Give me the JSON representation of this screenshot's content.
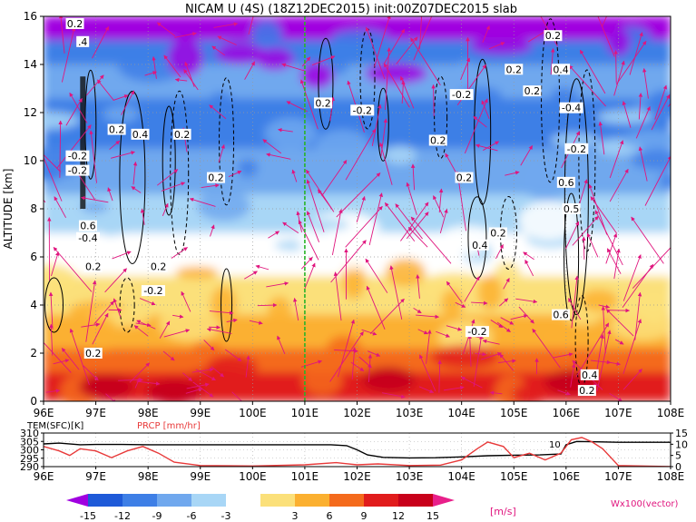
{
  "title": "NICAM U (4S) (18Z12DEC2015) init:00Z07DEC2015 slab",
  "chart_data": [
    {
      "type": "heatmap",
      "title": "NICAM U (4S) (18Z12DEC2015) init:00Z07DEC2015 slab",
      "xlabel": "",
      "ylabel": "ALTITUDE [km]",
      "xlim": [
        96,
        108
      ],
      "ylim": [
        0,
        16
      ],
      "x_ticks": [
        "96E",
        "97E",
        "98E",
        "99E",
        "100E",
        "101E",
        "102E",
        "103E",
        "104E",
        "105E",
        "106E",
        "107E",
        "108E"
      ],
      "y_ticks": [
        "0",
        "2",
        "4",
        "6",
        "8",
        "10",
        "12",
        "14",
        "16"
      ],
      "grid": true,
      "marker_line_x": 101,
      "contour_labels": [
        {
          "text": "0.2",
          "x": 96.6,
          "y": 15.7
        },
        {
          "text": ".4",
          "x": 96.75,
          "y": 14.95
        },
        {
          "text": "0.2",
          "x": 97.4,
          "y": 11.3
        },
        {
          "text": "0.4",
          "x": 97.85,
          "y": 11.1
        },
        {
          "text": "0.2",
          "x": 98.65,
          "y": 11.1
        },
        {
          "text": "-0.2",
          "x": 96.65,
          "y": 10.2
        },
        {
          "text": "-0.2",
          "x": 96.65,
          "y": 9.6
        },
        {
          "text": "0.6",
          "x": 96.85,
          "y": 7.3
        },
        {
          "text": "-0.4",
          "x": 96.85,
          "y": 6.8
        },
        {
          "text": "0.2",
          "x": 96.95,
          "y": 5.6
        },
        {
          "text": "0.2",
          "x": 98.2,
          "y": 5.6
        },
        {
          "text": "-0.2",
          "x": 98.1,
          "y": 4.6
        },
        {
          "text": "0.2",
          "x": 96.95,
          "y": 2.0
        },
        {
          "text": "0.2",
          "x": 99.3,
          "y": 9.3
        },
        {
          "text": "0.2",
          "x": 101.35,
          "y": 12.4
        },
        {
          "text": "-0.2",
          "x": 102.1,
          "y": 12.1
        },
        {
          "text": "0.2",
          "x": 103.55,
          "y": 10.85
        },
        {
          "text": "-0.2",
          "x": 104.0,
          "y": 12.75
        },
        {
          "text": "0.2",
          "x": 104.05,
          "y": 9.3
        },
        {
          "text": "0.2",
          "x": 105.0,
          "y": 13.8
        },
        {
          "text": "0.2",
          "x": 105.35,
          "y": 12.9
        },
        {
          "text": "0.2",
          "x": 105.75,
          "y": 15.2
        },
        {
          "text": "0.4",
          "x": 105.9,
          "y": 13.8
        },
        {
          "text": "-0.4",
          "x": 106.1,
          "y": 12.2
        },
        {
          "text": "-0.2",
          "x": 106.2,
          "y": 10.5
        },
        {
          "text": "0.6",
          "x": 106.0,
          "y": 9.1
        },
        {
          "text": "0.5",
          "x": 106.1,
          "y": 8.0
        },
        {
          "text": "0.4",
          "x": 104.35,
          "y": 6.5
        },
        {
          "text": "0.2",
          "x": 104.7,
          "y": 7.0
        },
        {
          "text": "-0.2",
          "x": 104.3,
          "y": 2.9
        },
        {
          "text": "0.6",
          "x": 105.9,
          "y": 3.6
        },
        {
          "text": "0.4",
          "x": 106.45,
          "y": 1.1
        },
        {
          "text": "0.2",
          "x": 106.4,
          "y": 0.45
        }
      ]
    },
    {
      "type": "line",
      "xlim": [
        96,
        108
      ],
      "x_ticks": [
        "96E",
        "97E",
        "98E",
        "99E",
        "100E",
        "101E",
        "102E",
        "103E",
        "104E",
        "105E",
        "106E",
        "107E",
        "108E"
      ],
      "left_axis": {
        "label": "TEM(SFC)[K]",
        "ticks": [
          "290",
          "295",
          "300",
          "305",
          "310"
        ],
        "range": [
          290,
          310
        ]
      },
      "right_axis": {
        "label": "PRCP [mm/hr]",
        "ticks": [
          "0",
          "5",
          "10",
          "15"
        ],
        "range": [
          0,
          15
        ]
      },
      "annotations": [
        "10"
      ],
      "series": [
        {
          "name": "TEM(SFC)[K]",
          "color": "#000000",
          "x": [
            96.0,
            96.3,
            96.7,
            97.0,
            97.5,
            98.0,
            98.5,
            99.0,
            99.5,
            100.0,
            100.5,
            101.0,
            101.5,
            101.8,
            102.0,
            102.2,
            102.5,
            103.0,
            103.5,
            104.0,
            104.5,
            105.0,
            105.5,
            105.9,
            106.0,
            106.2,
            106.5,
            107.0,
            107.5,
            108.0
          ],
          "y": [
            303.5,
            304.0,
            303.0,
            303.2,
            303.2,
            303.0,
            303.0,
            303.0,
            303.0,
            303.0,
            303.0,
            303.0,
            303.0,
            302.5,
            300.0,
            297.0,
            295.5,
            295.2,
            295.3,
            295.8,
            296.5,
            296.8,
            297.0,
            297.5,
            303.0,
            305.0,
            304.8,
            304.5,
            304.5,
            304.5
          ]
        },
        {
          "name": "PRCP [mm/hr]",
          "color": "#e83a3a",
          "x": [
            96.0,
            96.3,
            96.5,
            96.7,
            97.0,
            97.3,
            97.6,
            97.9,
            98.2,
            98.5,
            99.0,
            100.0,
            101.0,
            101.6,
            102.0,
            102.4,
            103.0,
            103.6,
            104.0,
            104.3,
            104.5,
            104.8,
            105.0,
            105.3,
            105.6,
            105.9,
            106.1,
            106.3,
            106.5,
            106.7,
            107.0,
            108.0
          ],
          "y": [
            9,
            7,
            5,
            8,
            7,
            4,
            7,
            9,
            6,
            2,
            0.5,
            0.3,
            0.8,
            1.8,
            0.8,
            1.2,
            0.5,
            0.7,
            3,
            8,
            11,
            9,
            4,
            6,
            3,
            6,
            12,
            13,
            11,
            8,
            0.5,
            0
          ]
        }
      ]
    }
  ],
  "colorbar": {
    "labels": [
      "-15",
      "-12",
      "-9",
      "-6",
      "-3",
      "3",
      "6",
      "9",
      "12",
      "15"
    ],
    "unit": "[m/s]",
    "colors": [
      "#a000e0",
      "#1e5ad8",
      "#3e7fe6",
      "#70a8ee",
      "#a8d6f6",
      "#ffffff",
      "#fbe07a",
      "#fbb030",
      "#f46a1c",
      "#e11c1c",
      "#c8001a",
      "#e8208a"
    ]
  },
  "vector_label": "Wx100(vector)",
  "colors": {
    "vector": "#e0157e",
    "marker_line": "#28b428",
    "precip_line": "#e83a3a",
    "temperature_line": "#000000",
    "axis_label_red": "#e83a3a"
  }
}
